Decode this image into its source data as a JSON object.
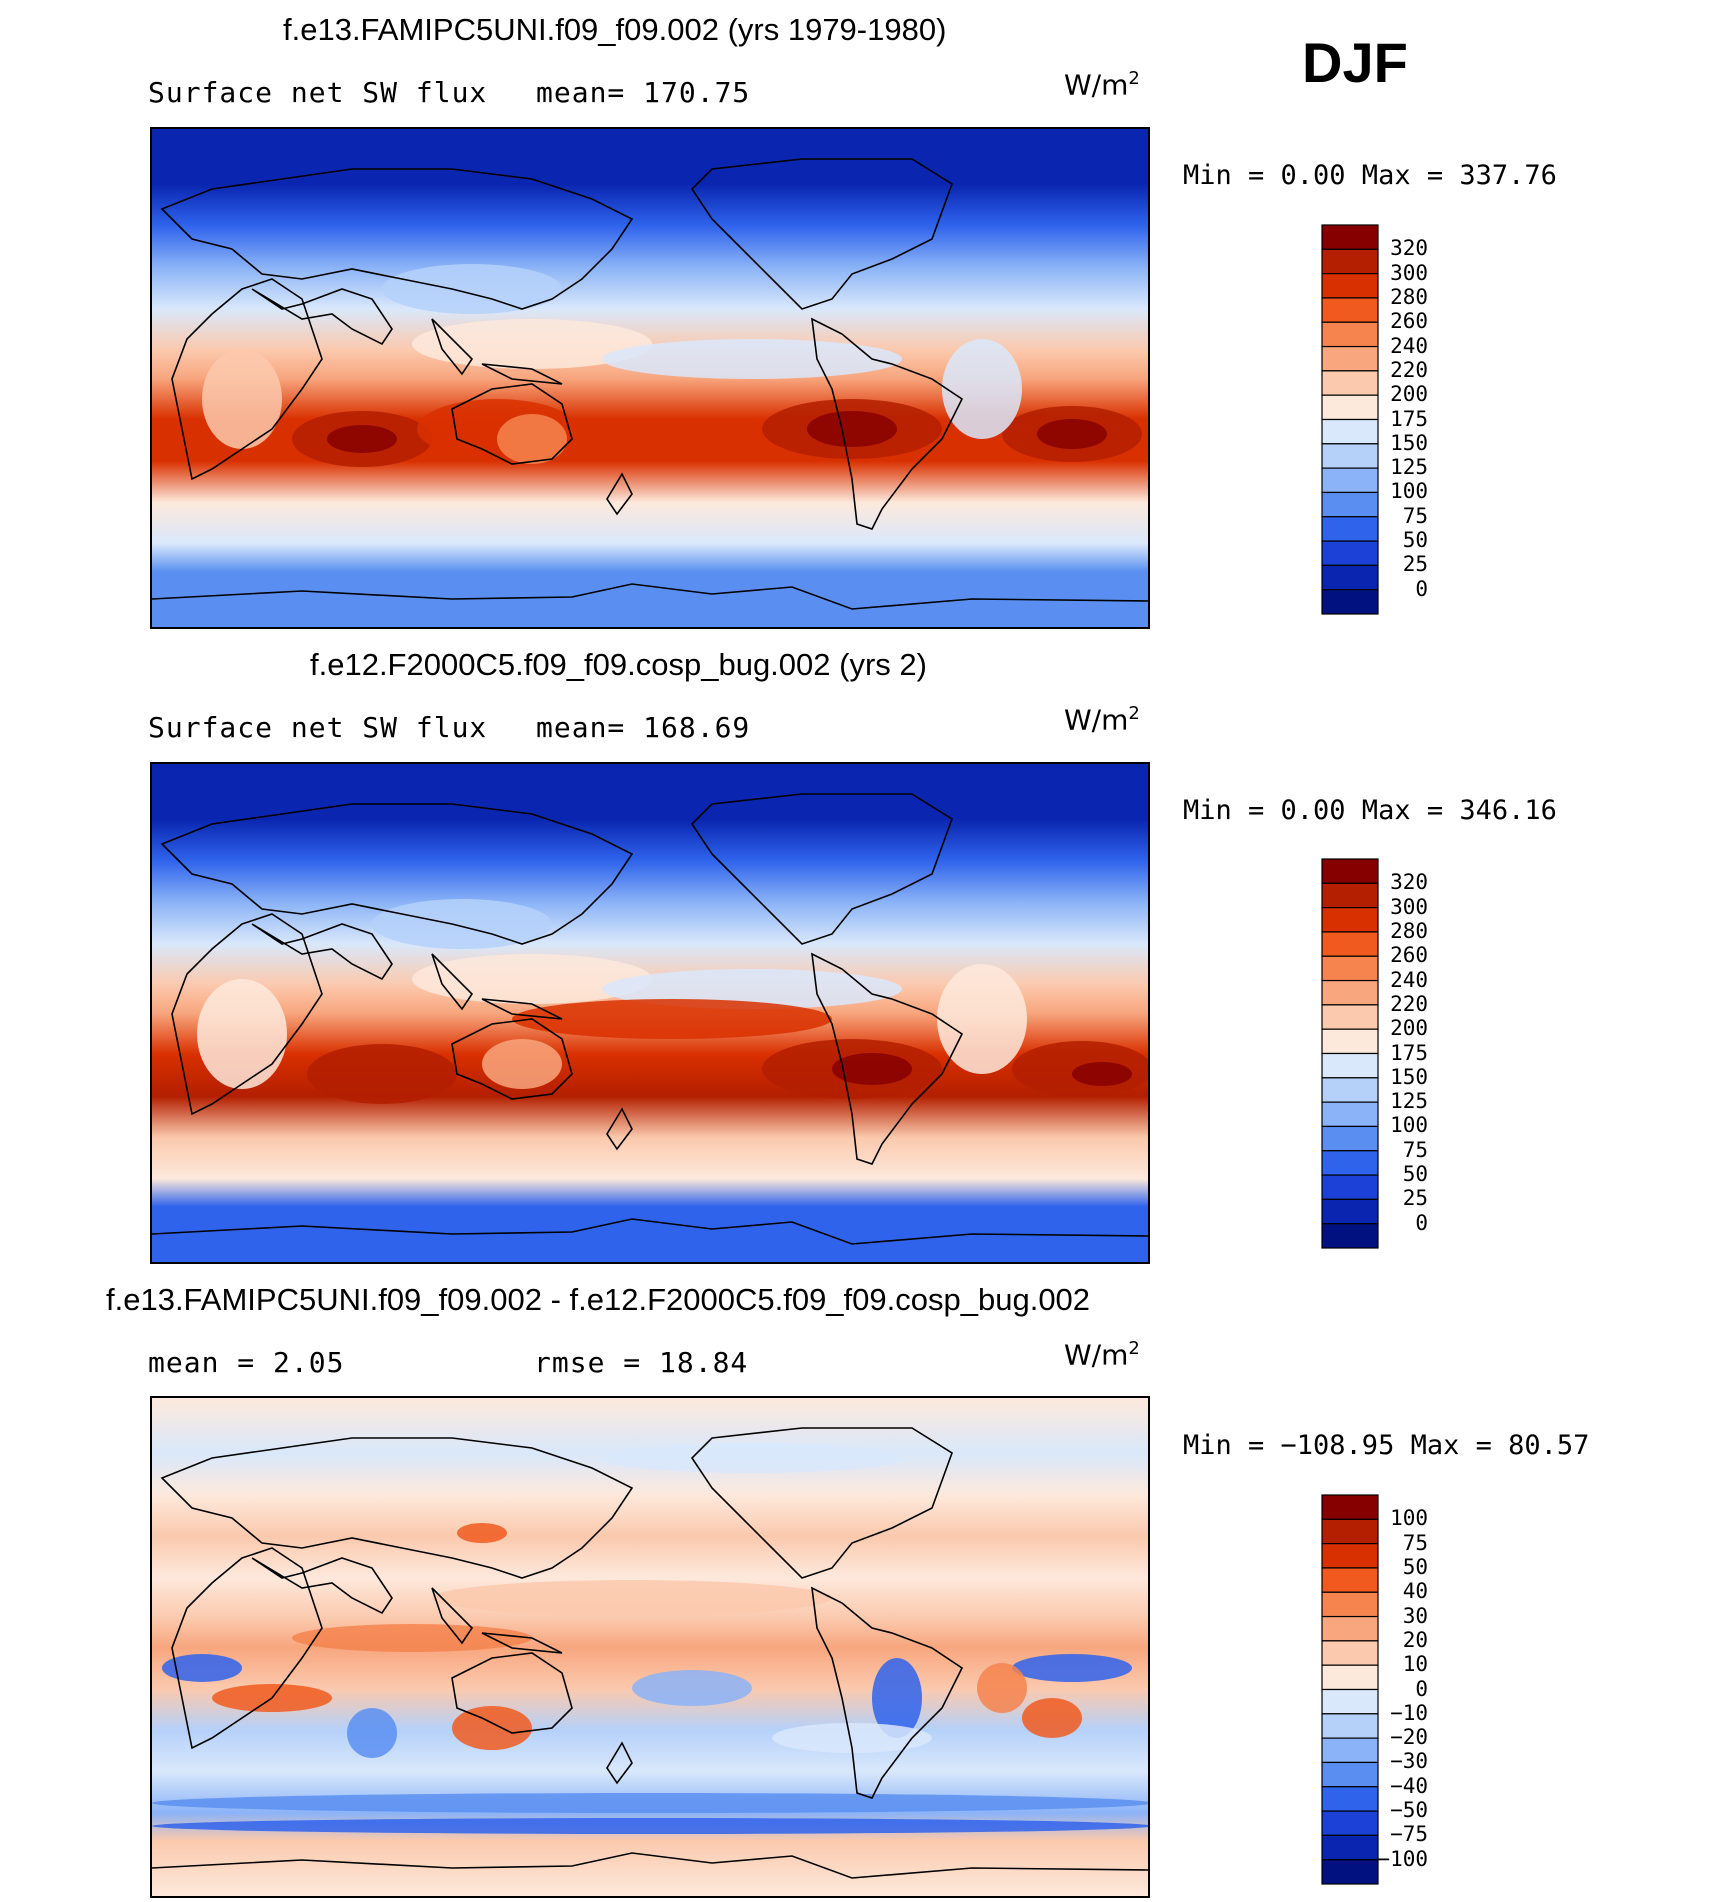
{
  "season": "DJF",
  "chart_data": [
    {
      "type": "heatmap",
      "title": "f.e13.FAMIPC5UNI.f09_f09.002 (yrs 1979-1980)",
      "variable": "Surface net SW flux",
      "stat_text": "mean= 170.75",
      "units": "W/m",
      "units_exp": "2",
      "minmax_text": "Min =    0.00 Max = 337.76",
      "min": 0.0,
      "max": 337.76,
      "mean": 170.75,
      "colorbar": {
        "levels": [
          "320",
          "300",
          "280",
          "260",
          "240",
          "220",
          "200",
          "175",
          "150",
          "125",
          "100",
          "75",
          "50",
          "25",
          "0"
        ],
        "colors": [
          "#870000",
          "#b31f00",
          "#d93000",
          "#f05a1e",
          "#f5844f",
          "#f8a67e",
          "#fbc9ad",
          "#fde9dc",
          "#d9e8fb",
          "#b5d1fa",
          "#8bb3f7",
          "#5a8ff1",
          "#2f63ec",
          "#1b41d6",
          "#0a26b0",
          "#011280"
        ]
      },
      "zonal_profile": [
        {
          "lat": 90,
          "value": 0
        },
        {
          "lat": 70,
          "value": 15
        },
        {
          "lat": 55,
          "value": 60
        },
        {
          "lat": 40,
          "value": 115
        },
        {
          "lat": 25,
          "value": 165
        },
        {
          "lat": 10,
          "value": 205
        },
        {
          "lat": 0,
          "value": 225
        },
        {
          "lat": -15,
          "value": 285
        },
        {
          "lat": -30,
          "value": 295
        },
        {
          "lat": -45,
          "value": 195
        },
        {
          "lat": -60,
          "value": 155
        },
        {
          "lat": -70,
          "value": 80
        },
        {
          "lat": -90,
          "value": 90
        }
      ]
    },
    {
      "type": "heatmap",
      "title": "f.e12.F2000C5.f09_f09.cosp_bug.002 (yrs 2)",
      "variable": "Surface net SW flux",
      "stat_text": "mean= 168.69",
      "units": "W/m",
      "units_exp": "2",
      "minmax_text": "Min =    0.00 Max = 346.16",
      "min": 0.0,
      "max": 346.16,
      "mean": 168.69,
      "colorbar": {
        "levels": [
          "320",
          "300",
          "280",
          "260",
          "240",
          "220",
          "200",
          "175",
          "150",
          "125",
          "100",
          "75",
          "50",
          "25",
          "0"
        ],
        "colors": [
          "#870000",
          "#b31f00",
          "#d93000",
          "#f05a1e",
          "#f5844f",
          "#f8a67e",
          "#fbc9ad",
          "#fde9dc",
          "#d9e8fb",
          "#b5d1fa",
          "#8bb3f7",
          "#5a8ff1",
          "#2f63ec",
          "#1b41d6",
          "#0a26b0",
          "#011280"
        ]
      },
      "zonal_profile": [
        {
          "lat": 90,
          "value": 0
        },
        {
          "lat": 70,
          "value": 20
        },
        {
          "lat": 55,
          "value": 60
        },
        {
          "lat": 40,
          "value": 110
        },
        {
          "lat": 25,
          "value": 160
        },
        {
          "lat": 10,
          "value": 200
        },
        {
          "lat": 0,
          "value": 220
        },
        {
          "lat": -15,
          "value": 280
        },
        {
          "lat": -30,
          "value": 300
        },
        {
          "lat": -45,
          "value": 205
        },
        {
          "lat": -60,
          "value": 175
        },
        {
          "lat": -70,
          "value": 70
        },
        {
          "lat": -90,
          "value": 70
        }
      ]
    },
    {
      "type": "heatmap",
      "title": "f.e13.FAMIPC5UNI.f09_f09.002 - f.e12.F2000C5.f09_f09.cosp_bug.002",
      "stat_text_1": "mean =    2.05",
      "stat_text_2": "rmse =   18.84",
      "mean": 2.05,
      "rmse": 18.84,
      "units": "W/m",
      "units_exp": "2",
      "minmax_text": "Min = −108.95 Max =   80.57",
      "min": -108.95,
      "max": 80.57,
      "colorbar": {
        "levels": [
          "100",
          "75",
          "50",
          "40",
          "30",
          "20",
          "10",
          "0",
          "−10",
          "−20",
          "−30",
          "−40",
          "−50",
          "−75",
          "−100"
        ],
        "colors": [
          "#870000",
          "#b31f00",
          "#d93000",
          "#f05a1e",
          "#f5844f",
          "#f8a67e",
          "#fbc9ad",
          "#fde9dc",
          "#d9e8fb",
          "#b5d1fa",
          "#8bb3f7",
          "#5a8ff1",
          "#2f63ec",
          "#1b41d6",
          "#0a26b0",
          "#011280"
        ]
      },
      "zonal_profile": [
        {
          "lat": 90,
          "value": 5
        },
        {
          "lat": 70,
          "value": -5
        },
        {
          "lat": 55,
          "value": 5
        },
        {
          "lat": 40,
          "value": 10
        },
        {
          "lat": 25,
          "value": 5
        },
        {
          "lat": 10,
          "value": 15
        },
        {
          "lat": 0,
          "value": 20
        },
        {
          "lat": -15,
          "value": 10
        },
        {
          "lat": -30,
          "value": -15
        },
        {
          "lat": -45,
          "value": -10
        },
        {
          "lat": -60,
          "value": -30
        },
        {
          "lat": -70,
          "value": 10
        },
        {
          "lat": -90,
          "value": 5
        }
      ]
    }
  ]
}
